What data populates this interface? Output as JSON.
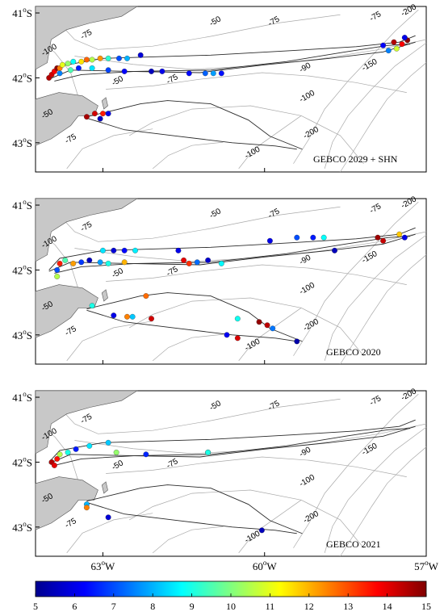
{
  "panels": [
    {
      "title": "GEBCO 2029 + SHN",
      "lat_ticks": [
        "41",
        "42",
        "43"
      ],
      "contour_labels": [
        "-75",
        "-50",
        "-75",
        "-200",
        "-100",
        "-75",
        "-150",
        "-90",
        "-75",
        "-50",
        "-100",
        "-50",
        "-75",
        "-200",
        "-100"
      ],
      "track_points": [
        {
          "lon": -64.0,
          "lat": -42.0,
          "v": 14.5
        },
        {
          "lon": -63.95,
          "lat": -41.95,
          "v": 14.2
        },
        {
          "lon": -63.9,
          "lat": -41.9,
          "v": 13.8
        },
        {
          "lon": -63.85,
          "lat": -41.85,
          "v": 14.8
        },
        {
          "lon": -63.8,
          "lat": -41.85,
          "v": 12.5
        },
        {
          "lon": -63.75,
          "lat": -41.8,
          "v": 11.0
        },
        {
          "lon": -63.65,
          "lat": -41.78,
          "v": 10.2
        },
        {
          "lon": -63.55,
          "lat": -41.75,
          "v": 8.8
        },
        {
          "lon": -63.4,
          "lat": -41.75,
          "v": 11.5
        },
        {
          "lon": -63.3,
          "lat": -41.72,
          "v": 12.8
        },
        {
          "lon": -63.2,
          "lat": -41.72,
          "v": 10.5
        },
        {
          "lon": -63.05,
          "lat": -41.7,
          "v": 12.3
        },
        {
          "lon": -62.9,
          "lat": -41.7,
          "v": 9.2
        },
        {
          "lon": -62.7,
          "lat": -41.7,
          "v": 7.0
        },
        {
          "lon": -62.55,
          "lat": -41.7,
          "v": 8.0
        },
        {
          "lon": -62.3,
          "lat": -41.65,
          "v": 5.8
        },
        {
          "lon": -63.8,
          "lat": -41.93,
          "v": 7.5
        },
        {
          "lon": -63.6,
          "lat": -41.88,
          "v": 9.5
        },
        {
          "lon": -63.45,
          "lat": -41.85,
          "v": 6.5
        },
        {
          "lon": -63.2,
          "lat": -41.85,
          "v": 8.5
        },
        {
          "lon": -62.9,
          "lat": -41.88,
          "v": 6.9
        },
        {
          "lon": -62.6,
          "lat": -41.9,
          "v": 6.2
        },
        {
          "lon": -62.1,
          "lat": -41.9,
          "v": 5.5
        },
        {
          "lon": -61.9,
          "lat": -41.9,
          "v": 6.0
        },
        {
          "lon": -61.4,
          "lat": -41.93,
          "v": 6.3
        },
        {
          "lon": -61.1,
          "lat": -41.93,
          "v": 7.2
        },
        {
          "lon": -60.95,
          "lat": -41.93,
          "v": 7.8
        },
        {
          "lon": -60.8,
          "lat": -41.93,
          "v": 6.4
        },
        {
          "lon": -63.3,
          "lat": -42.6,
          "v": 14.6
        },
        {
          "lon": -63.15,
          "lat": -42.55,
          "v": 14.2
        },
        {
          "lon": -63.0,
          "lat": -42.55,
          "v": 13.5
        },
        {
          "lon": -62.9,
          "lat": -42.55,
          "v": 6.0
        },
        {
          "lon": -63.05,
          "lat": -42.63,
          "v": 5.5
        },
        {
          "lon": -57.6,
          "lat": -41.45,
          "v": 14.5
        },
        {
          "lon": -57.45,
          "lat": -41.48,
          "v": 13.8
        },
        {
          "lon": -57.35,
          "lat": -41.42,
          "v": 14.9
        },
        {
          "lon": -57.55,
          "lat": -41.55,
          "v": 10.8
        },
        {
          "lon": -57.7,
          "lat": -41.58,
          "v": 7.5
        },
        {
          "lon": -57.8,
          "lat": -41.5,
          "v": 6.2
        },
        {
          "lon": -57.4,
          "lat": -41.38,
          "v": 6.0
        }
      ]
    },
    {
      "title": "GEBCO 2020",
      "lat_ticks": [
        "41",
        "42",
        "43"
      ],
      "contour_labels": [
        "-75",
        "-50",
        "-75",
        "-200",
        "-100",
        "-75",
        "-150",
        "-90",
        "-75",
        "-50",
        "-100",
        "-50",
        "-75",
        "-200",
        "-100"
      ],
      "track_points": [
        {
          "lon": -63.85,
          "lat": -42.0,
          "v": 7.0
        },
        {
          "lon": -63.8,
          "lat": -41.9,
          "v": 13.5
        },
        {
          "lon": -63.7,
          "lat": -41.85,
          "v": 9.5
        },
        {
          "lon": -63.55,
          "lat": -41.9,
          "v": 12.2
        },
        {
          "lon": -63.4,
          "lat": -41.88,
          "v": 6.8
        },
        {
          "lon": -63.25,
          "lat": -41.85,
          "v": 5.5
        },
        {
          "lon": -63.05,
          "lat": -41.88,
          "v": 7.8
        },
        {
          "lon": -62.9,
          "lat": -41.9,
          "v": 9.0
        },
        {
          "lon": -62.6,
          "lat": -41.88,
          "v": 12.0
        },
        {
          "lon": -63.0,
          "lat": -41.7,
          "v": 8.5
        },
        {
          "lon": -62.8,
          "lat": -41.7,
          "v": 5.8
        },
        {
          "lon": -62.6,
          "lat": -41.7,
          "v": 6.3
        },
        {
          "lon": -62.4,
          "lat": -41.7,
          "v": 8.6
        },
        {
          "lon": -61.6,
          "lat": -41.7,
          "v": 6.0
        },
        {
          "lon": -61.5,
          "lat": -41.85,
          "v": 14.0
        },
        {
          "lon": -61.4,
          "lat": -41.9,
          "v": 13.3
        },
        {
          "lon": -61.25,
          "lat": -41.88,
          "v": 7.3
        },
        {
          "lon": -61.05,
          "lat": -41.85,
          "v": 5.7
        },
        {
          "lon": -60.8,
          "lat": -41.9,
          "v": 8.7
        },
        {
          "lon": -59.9,
          "lat": -41.55,
          "v": 6.0
        },
        {
          "lon": -59.4,
          "lat": -41.5,
          "v": 7.0
        },
        {
          "lon": -59.1,
          "lat": -41.5,
          "v": 6.5
        },
        {
          "lon": -58.9,
          "lat": -41.5,
          "v": 8.8
        },
        {
          "lon": -58.7,
          "lat": -41.7,
          "v": 5.5
        },
        {
          "lon": -57.9,
          "lat": -41.5,
          "v": 14.7
        },
        {
          "lon": -57.8,
          "lat": -41.55,
          "v": 14.3
        },
        {
          "lon": -57.5,
          "lat": -41.45,
          "v": 11.8
        },
        {
          "lon": -57.4,
          "lat": -41.5,
          "v": 6.0
        },
        {
          "lon": -63.85,
          "lat": -42.1,
          "v": 10.5
        },
        {
          "lon": -63.2,
          "lat": -42.55,
          "v": 9.0
        },
        {
          "lon": -62.8,
          "lat": -42.7,
          "v": 6.0
        },
        {
          "lon": -62.55,
          "lat": -42.72,
          "v": 12.5
        },
        {
          "lon": -62.45,
          "lat": -42.72,
          "v": 8.2
        },
        {
          "lon": -62.1,
          "lat": -42.75,
          "v": 14.2
        },
        {
          "lon": -62.2,
          "lat": -42.4,
          "v": 12.7
        },
        {
          "lon": -60.5,
          "lat": -42.75,
          "v": 8.9
        },
        {
          "lon": -60.1,
          "lat": -42.8,
          "v": 14.8
        },
        {
          "lon": -59.95,
          "lat": -42.85,
          "v": 14.4
        },
        {
          "lon": -59.85,
          "lat": -42.9,
          "v": 7.4
        },
        {
          "lon": -60.5,
          "lat": -43.05,
          "v": 14.1
        },
        {
          "lon": -60.7,
          "lat": -43.0,
          "v": 6.1
        },
        {
          "lon": -59.4,
          "lat": -43.1,
          "v": 5.3
        }
      ]
    },
    {
      "title": "GEBCO 2021",
      "lat_ticks": [
        "41",
        "42",
        "43"
      ],
      "contour_labels": [
        "-75",
        "-50",
        "-75",
        "-200",
        "-100",
        "-75",
        "-150",
        "-90",
        "-75",
        "-50",
        "-100",
        "-50",
        "-75",
        "-200",
        "-100"
      ],
      "track_points": [
        {
          "lon": -63.95,
          "lat": -42.0,
          "v": 14.5
        },
        {
          "lon": -63.9,
          "lat": -42.05,
          "v": 14.0
        },
        {
          "lon": -63.85,
          "lat": -41.95,
          "v": 13.6
        },
        {
          "lon": -63.8,
          "lat": -41.88,
          "v": 10.5
        },
        {
          "lon": -63.65,
          "lat": -41.85,
          "v": 9.0
        },
        {
          "lon": -63.5,
          "lat": -41.8,
          "v": 6.5
        },
        {
          "lon": -63.25,
          "lat": -41.75,
          "v": 8.5
        },
        {
          "lon": -62.9,
          "lat": -41.7,
          "v": 8.2
        },
        {
          "lon": -62.75,
          "lat": -41.85,
          "v": 10.2
        },
        {
          "lon": -62.2,
          "lat": -41.88,
          "v": 6.6
        },
        {
          "lon": -61.05,
          "lat": -41.85,
          "v": 8.4
        },
        {
          "lon": -61.05,
          "lat": -41.85,
          "v": 9.0
        },
        {
          "lon": -63.3,
          "lat": -42.65,
          "v": 8.0
        },
        {
          "lon": -63.3,
          "lat": -42.7,
          "v": 12.5
        },
        {
          "lon": -62.9,
          "lat": -42.85,
          "v": 5.8
        },
        {
          "lon": -60.05,
          "lat": -43.05,
          "v": 5.5
        }
      ]
    }
  ],
  "lon_ticks": [
    "63",
    "60",
    "57"
  ],
  "colorbar": {
    "ticks": [
      "5",
      "6",
      "7",
      "8",
      "9",
      "10",
      "11",
      "12",
      "13",
      "14",
      "15"
    ],
    "min": 5,
    "max": 15
  },
  "colors": {
    "land": "#c8c8c8",
    "contour": "#a9a9a9",
    "track": "#2a2a2a"
  }
}
